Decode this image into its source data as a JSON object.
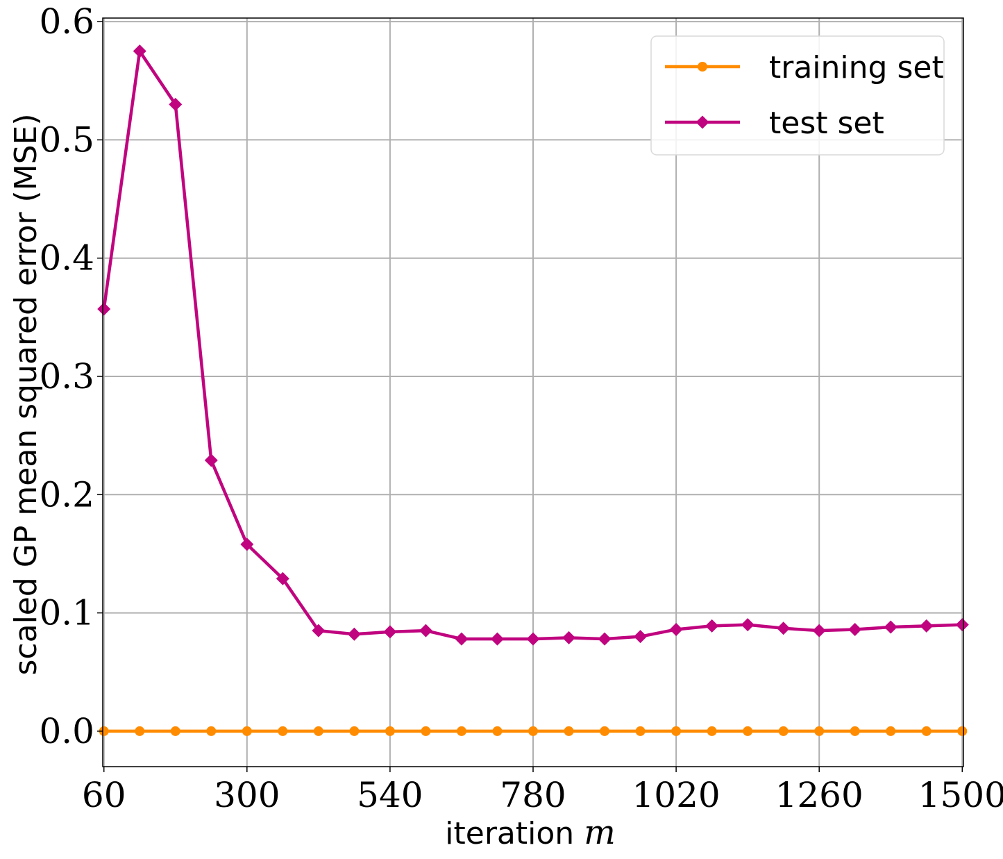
{
  "chart_data": {
    "type": "line",
    "xlabel": "iteration",
    "xlabel_var": "m",
    "ylabel": "scaled GP mean squared error (MSE)",
    "xlim": [
      58,
      1502
    ],
    "ylim": [
      -0.03,
      0.603
    ],
    "xticks": [
      60,
      300,
      540,
      780,
      1020,
      1260,
      1500
    ],
    "yticks": [
      0.0,
      0.1,
      0.2,
      0.3,
      0.4,
      0.5,
      0.6
    ],
    "ytick_labels": [
      "0.0",
      "0.1",
      "0.2",
      "0.3",
      "0.4",
      "0.5",
      "0.6"
    ],
    "grid": true,
    "legend_position": "top-right",
    "x": [
      60,
      120,
      180,
      240,
      300,
      360,
      420,
      480,
      540,
      600,
      660,
      720,
      780,
      840,
      900,
      960,
      1020,
      1080,
      1140,
      1200,
      1260,
      1320,
      1380,
      1440,
      1500
    ],
    "series": [
      {
        "name": "training set",
        "color": "#ff8c00",
        "marker": "circle",
        "values": [
          0.0,
          0.0,
          0.0,
          0.0,
          0.0,
          0.0,
          0.0,
          0.0,
          0.0,
          0.0,
          0.0,
          0.0,
          0.0,
          0.0,
          0.0,
          0.0,
          0.0,
          0.0,
          0.0,
          0.0,
          0.0,
          0.0,
          0.0,
          0.0,
          0.0
        ]
      },
      {
        "name": "test set",
        "color": "#c0047f",
        "marker": "diamond",
        "values": [
          0.357,
          0.575,
          0.53,
          0.229,
          0.158,
          0.129,
          0.085,
          0.082,
          0.084,
          0.085,
          0.078,
          0.078,
          0.078,
          0.079,
          0.078,
          0.08,
          0.086,
          0.089,
          0.09,
          0.087,
          0.085,
          0.086,
          0.088,
          0.089,
          0.09
        ]
      }
    ]
  }
}
